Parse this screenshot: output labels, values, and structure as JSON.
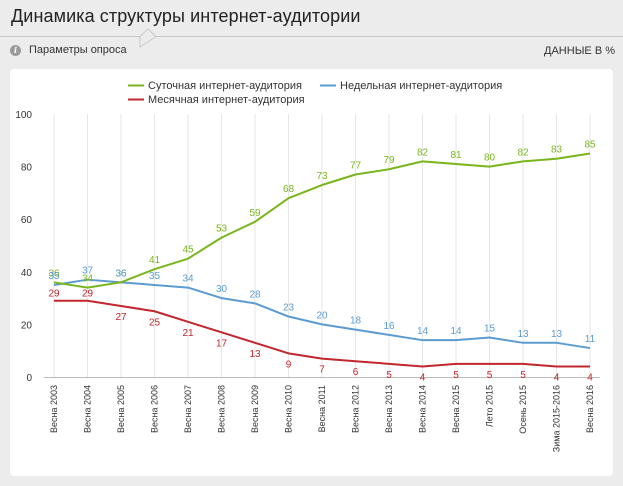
{
  "header": {
    "title": "Динамика структуры интернет-аудитории",
    "params_label": "Параметры опроса",
    "units_label": "ДАННЫЕ В %"
  },
  "chart_data": {
    "type": "line",
    "title": "",
    "xlabel": "",
    "ylabel": "",
    "ylim": [
      0,
      100
    ],
    "yticks": [
      0,
      20,
      40,
      60,
      80,
      100
    ],
    "grid": {
      "vertical": true,
      "horizontal": false
    },
    "legend_position": "top-center",
    "categories": [
      "Весна 2003",
      "Весна 2004",
      "Весна 2005",
      "Весна 2006",
      "Весна 2007",
      "Весна 2008",
      "Весна 2009",
      "Весна 2010",
      "Весна 2011",
      "Весна 2012",
      "Весна 2013",
      "Весна 2014",
      "Весна 2015",
      "Лето 2015",
      "Осень 2015",
      "Зима 2015-2016",
      "Весна 2016"
    ],
    "series": [
      {
        "name": "Суточная интернет-аудитория",
        "color": "#7ab51d",
        "values": [
          36,
          34,
          36,
          41,
          45,
          53,
          59,
          68,
          73,
          77,
          79,
          82,
          81,
          80,
          82,
          83,
          85
        ]
      },
      {
        "name": "Недельная интернет-аудитория",
        "color": "#5b9bd0",
        "values": [
          35,
          37,
          36,
          35,
          34,
          30,
          28,
          23,
          20,
          18,
          16,
          14,
          14,
          15,
          13,
          13,
          11
        ]
      },
      {
        "name": "Месячная интернет-аудитория",
        "color": "#c1272d",
        "values": [
          29,
          29,
          27,
          25,
          21,
          17,
          13,
          9,
          7,
          6,
          5,
          4,
          5,
          5,
          5,
          4,
          4
        ]
      }
    ]
  }
}
